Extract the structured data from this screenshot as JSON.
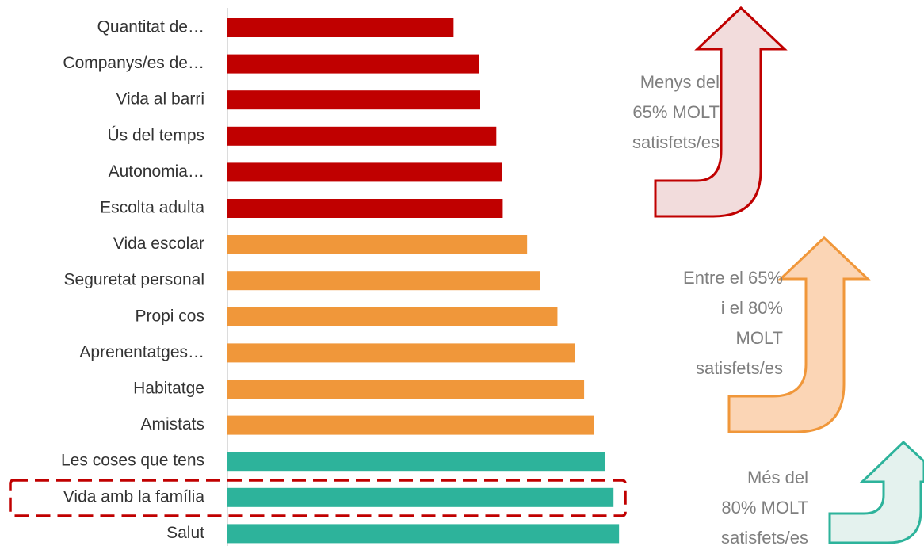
{
  "chart_data": {
    "type": "barh",
    "categories": [
      "Quantitat de…",
      "Companys/es de…",
      "Vida al barri",
      "Ús del temps",
      "Autonomia…",
      "Escolta adulta",
      "Vida escolar",
      "Seguretat personal",
      "Propi cos",
      "Aprenentatges…",
      "Habitatge",
      "Amistats",
      "Les coses que tens",
      "Vida amb la família",
      "Salut"
    ],
    "values": [
      49.2,
      54.7,
      55.0,
      58.5,
      59.7,
      59.9,
      65.2,
      68.1,
      71.8,
      75.6,
      77.6,
      79.7,
      82.1,
      84.0,
      85.2
    ],
    "colors": [
      "#c00000",
      "#c00000",
      "#c00000",
      "#c00000",
      "#c00000",
      "#c00000",
      "#f0973a",
      "#f0973a",
      "#f0973a",
      "#f0973a",
      "#f0973a",
      "#f0973a",
      "#2db39b",
      "#2db39b",
      "#2db39b"
    ],
    "xlim": [
      0,
      100
    ],
    "annotations": [
      {
        "lines": [
          "Menys del",
          "65% MOLT",
          "satisfets/es"
        ]
      },
      {
        "lines": [
          "Entre el 65%",
          "i el 80%",
          "MOLT",
          "satisfets/es"
        ]
      },
      {
        "lines": [
          "Més del",
          "80% MOLT",
          "satisfets/es"
        ]
      }
    ]
  }
}
